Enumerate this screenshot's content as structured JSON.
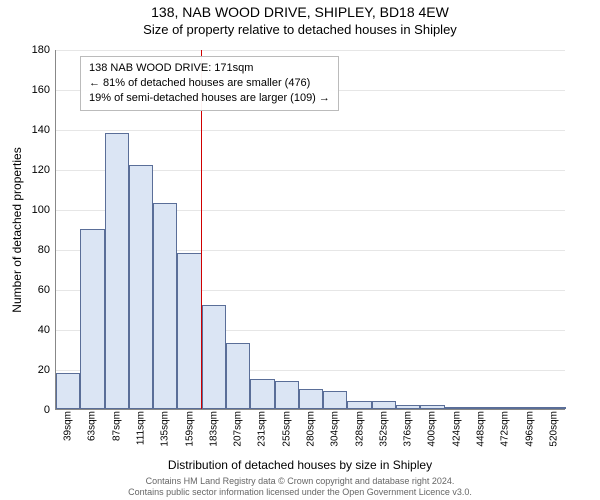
{
  "title": {
    "main": "138, NAB WOOD DRIVE, SHIPLEY, BD18 4EW",
    "sub": "Size of property relative to detached houses in Shipley"
  },
  "axes": {
    "ylabel": "Number of detached properties",
    "xlabel": "Distribution of detached houses by size in Shipley"
  },
  "chart": {
    "type": "histogram",
    "ylim": [
      0,
      180
    ],
    "yticks": [
      0,
      20,
      40,
      60,
      80,
      100,
      120,
      140,
      160,
      180
    ],
    "xticks": [
      "39sqm",
      "63sqm",
      "87sqm",
      "111sqm",
      "135sqm",
      "159sqm",
      "183sqm",
      "207sqm",
      "231sqm",
      "255sqm",
      "280sqm",
      "304sqm",
      "328sqm",
      "352sqm",
      "376sqm",
      "400sqm",
      "424sqm",
      "448sqm",
      "472sqm",
      "496sqm",
      "520sqm"
    ],
    "bar_fill": "#dbe5f4",
    "bar_stroke": "#5a6e98",
    "bar_count": 21,
    "values": [
      18,
      90,
      138,
      122,
      103,
      78,
      52,
      33,
      15,
      14,
      10,
      9,
      4,
      4,
      2,
      2,
      1,
      1,
      1,
      1,
      1
    ],
    "grid_color": "#e6e6e6",
    "background": "#ffffff"
  },
  "marker": {
    "position_sqm": 171,
    "color": "#d00000",
    "legend_lines": [
      "138 NAB WOOD DRIVE: 171sqm",
      "← 81% of detached houses are smaller (476)",
      "19% of semi-detached houses are larger (109) →"
    ]
  },
  "attribution": {
    "line1": "Contains HM Land Registry data © Crown copyright and database right 2024.",
    "line2": "Contains public sector information licensed under the Open Government Licence v3.0."
  }
}
